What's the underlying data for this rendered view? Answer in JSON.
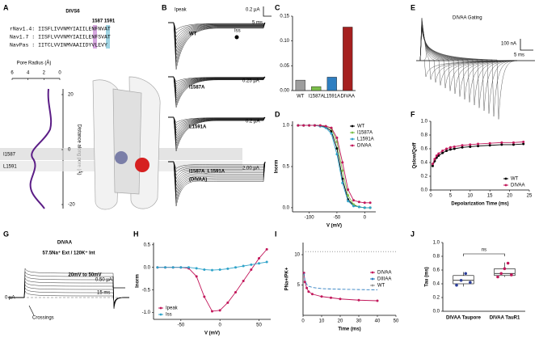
{
  "panel_letters": [
    "A",
    "B",
    "C",
    "D",
    "E",
    "F",
    "G",
    "H",
    "I",
    "J"
  ],
  "panel_a": {
    "title": "DIVS6",
    "positions": "1587 1591",
    "sequences": [
      "rNav1.4: IISFLIVVNMYIAIILENFNVAT",
      "Nav1.7 : IISFLVVVNMYIAIILENFSVAT",
      "NavPas : IITCLVVINMVAAIIDYVLEVY"
    ],
    "radius_label": "Pore Radius (Å)",
    "radius_ticks": [
      6,
      4,
      2,
      0
    ],
    "distance_label": "Distance along pore (Å)",
    "distance_ticks": [
      20,
      0,
      -20
    ],
    "residues": [
      "I1587",
      "L1591"
    ]
  },
  "panel_b": {
    "peak_label": "Ipeak",
    "ss_label": "Iss",
    "constructs": [
      "WT",
      "I1587A",
      "L1591A",
      "I1587A_L1591A"
    ],
    "construct_note": "(DIVAA)",
    "scale_current": [
      "0.2 µA",
      "0.25 µA",
      "0.2 µA",
      "2.00 µA"
    ],
    "scale_time": "5 ms"
  },
  "panel_e": {
    "title": "DIVAA Gating",
    "scale_current": "100 nA",
    "scale_time": "5 ms"
  },
  "panel_g": {
    "title": "DIVAA",
    "solutions": "57.5Na⁺ Ext / 120K⁺ Int",
    "protocol": "20mV to 50mV",
    "scale_current": "0.50 µA",
    "scale_time": "15 ms",
    "zero_label": "0 µA",
    "crossings": "Crossings"
  },
  "chart_data": [
    {
      "type": "bar",
      "categories": [
        "WT",
        "I1587A",
        "L1591A",
        "DIVAA"
      ],
      "values": [
        0.021,
        0.008,
        0.027,
        0.128
      ],
      "colors": [
        "#9e9e9e",
        "#7cbf4a",
        "#2f7fc1",
        "#a5201f"
      ],
      "ylim": [
        0,
        0.15
      ],
      "yticks": [
        {
          "value": 0,
          "label": "0.00"
        },
        {
          "value": 0.05,
          "label": "0.05"
        },
        {
          "value": 0.1,
          "label": "0.10"
        },
        {
          "value": 0.15,
          "label": "0.15"
        }
      ]
    },
    {
      "type": "line",
      "markers": true,
      "xlabel": "V (mV)",
      "ylabel": "Inorm",
      "legend": "upper right",
      "x": [
        -120,
        -110,
        -100,
        -90,
        -80,
        -70,
        -60,
        -50,
        -40,
        -30,
        -20,
        -10,
        0,
        10
      ],
      "xlim": [
        -130,
        20
      ],
      "xticks": [
        -100,
        -50,
        0
      ],
      "ylim": [
        -0.05,
        1.05
      ],
      "yticks": [
        {
          "value": 0,
          "label": "0.0"
        },
        {
          "value": 0.5,
          "label": "0.5"
        },
        {
          "value": 1,
          "label": "1.0"
        }
      ],
      "series": [
        {
          "name": "WT",
          "color": "#000000",
          "values": [
            1,
            1,
            1,
            1,
            0.99,
            0.98,
            0.93,
            0.72,
            0.35,
            0.1,
            0.03,
            0.01,
            0,
            0
          ]
        },
        {
          "name": "I1587A",
          "color": "#7cbf4a",
          "values": [
            1,
            1,
            1,
            1,
            1,
            0.99,
            0.96,
            0.8,
            0.45,
            0.15,
            0.04,
            0.01,
            0,
            0
          ]
        },
        {
          "name": "L1591A",
          "color": "#2fa3c9",
          "values": [
            1,
            1,
            1,
            1,
            0.99,
            0.97,
            0.9,
            0.65,
            0.3,
            0.08,
            0.02,
            0.01,
            0,
            0
          ]
        },
        {
          "name": "DIVAA",
          "color": "#c2185b",
          "values": [
            1,
            1,
            1,
            1,
            1,
            0.99,
            0.97,
            0.85,
            0.55,
            0.22,
            0.09,
            0.07,
            0.06,
            0.06
          ]
        }
      ]
    },
    {
      "type": "scatter",
      "markers": true,
      "xlabel": "Depolarization Time (ms)",
      "ylabel": "Qslow/Qoff",
      "legend": "lower right",
      "x": [
        0.5,
        1,
        1.5,
        2,
        3,
        4,
        5,
        6,
        8,
        10,
        12,
        15,
        18,
        21,
        23.5
      ],
      "xlim": [
        0,
        25
      ],
      "xticks": [
        0,
        5,
        10,
        15,
        20,
        25
      ],
      "ylim": [
        0,
        1
      ],
      "yticks": [
        {
          "value": 0,
          "label": "0.0"
        },
        {
          "value": 0.2,
          "label": "0.2"
        },
        {
          "value": 0.4,
          "label": "0.4"
        },
        {
          "value": 0.6,
          "label": "0.6"
        },
        {
          "value": 0.8,
          "label": "0.8"
        },
        {
          "value": 1,
          "label": "1.0"
        }
      ],
      "series": [
        {
          "name": "WT",
          "color": "#000000",
          "values": [
            0.35,
            0.42,
            0.47,
            0.5,
            0.54,
            0.57,
            0.59,
            0.6,
            0.62,
            0.63,
            0.64,
            0.65,
            0.66,
            0.66,
            0.67
          ]
        },
        {
          "name": "DIVAA",
          "color": "#c2185b",
          "values": [
            0.38,
            0.45,
            0.5,
            0.53,
            0.57,
            0.6,
            0.62,
            0.63,
            0.65,
            0.66,
            0.67,
            0.68,
            0.69,
            0.69,
            0.7
          ]
        }
      ]
    },
    {
      "type": "line",
      "markers": true,
      "xlabel": "V (mV)",
      "ylabel": "Inorm",
      "legend": "lower left",
      "x": [
        -80,
        -70,
        -60,
        -50,
        -40,
        -30,
        -20,
        -10,
        0,
        10,
        20,
        30,
        40,
        50,
        60
      ],
      "xlim": [
        -85,
        65
      ],
      "xticks": [
        -50,
        0,
        50
      ],
      "ylim": [
        -1.15,
        0.55
      ],
      "yticks": [
        {
          "value": 0.5,
          "label": "0.5"
        },
        {
          "value": 0,
          "label": "0.0"
        },
        {
          "value": -0.5,
          "label": "-0.5"
        },
        {
          "value": -1,
          "label": "-1.0"
        }
      ],
      "series": [
        {
          "name": "Ipeak",
          "color": "#c2185b",
          "values": [
            0,
            0,
            0,
            0,
            -0.02,
            -0.2,
            -0.65,
            -0.97,
            -0.95,
            -0.78,
            -0.55,
            -0.3,
            -0.05,
            0.2,
            0.4
          ]
        },
        {
          "name": "Iss",
          "color": "#2fa3c9",
          "values": [
            0,
            0,
            0,
            0,
            0,
            -0.02,
            -0.05,
            -0.06,
            -0.05,
            -0.03,
            0,
            0.03,
            0.06,
            0.09,
            0.12
          ]
        }
      ]
    },
    {
      "type": "line",
      "xlabel": "Time (ms)",
      "ylabel": "PNa+/PK+",
      "legend": "center right",
      "xlim": [
        0,
        50
      ],
      "xticks": [
        0,
        10,
        20,
        30,
        40,
        50
      ],
      "ylim": [
        0,
        12
      ],
      "yticks": [
        5,
        10
      ],
      "series": [
        {
          "name": "DIVAA",
          "color": "#c2185b",
          "markers": true,
          "x": [
            0.5,
            1,
            2,
            3,
            5,
            10,
            15,
            20,
            30,
            40
          ],
          "values": [
            7,
            5.5,
            4.5,
            3.9,
            3.5,
            3.1,
            2.9,
            2.7,
            2.5,
            2.4
          ]
        },
        {
          "name": "DIIIAA",
          "color": "#2f7fc1",
          "dash": "4 2",
          "x": [
            0.5,
            1,
            2,
            3,
            5,
            10,
            20,
            30,
            40
          ],
          "values": [
            7,
            5.8,
            5.1,
            4.8,
            4.6,
            4.4,
            4.3,
            4.25,
            4.2
          ]
        },
        {
          "name": "WT",
          "color": "#999999",
          "dash": "1 2",
          "x": [
            0,
            50
          ],
          "values": [
            10.5,
            10.5
          ]
        }
      ]
    },
    {
      "type": "box",
      "ylabel": "Tau (ms)",
      "categories": [
        "DIVAA Taupore",
        "DIVAA TauR1"
      ],
      "colors": [
        "#2b3d9a",
        "#c2185b"
      ],
      "ylim": [
        0,
        1
      ],
      "yticks": [
        {
          "value": 0,
          "label": "0.0"
        },
        {
          "value": 0.2,
          "label": "0.2"
        },
        {
          "value": 0.4,
          "label": "0.4"
        },
        {
          "value": 0.6,
          "label": "0.6"
        },
        {
          "value": 0.8,
          "label": "0.8"
        },
        {
          "value": 1,
          "label": "1.0"
        }
      ],
      "boxes": [
        [
          0.36,
          0.4,
          0.45,
          0.52,
          0.57
        ],
        [
          0.5,
          0.52,
          0.55,
          0.62,
          0.71
        ]
      ],
      "points": [
        [
          0.38,
          0.45,
          0.55,
          0.42
        ],
        [
          0.5,
          0.55,
          0.62,
          0.7,
          0.53
        ]
      ],
      "annotation": "ns"
    }
  ]
}
